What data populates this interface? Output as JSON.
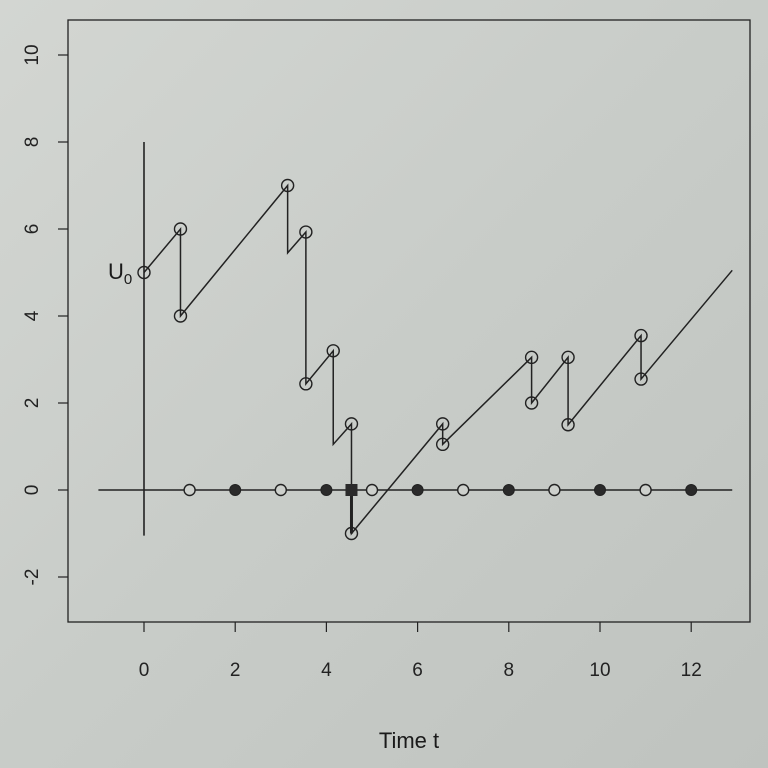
{
  "chart_data": {
    "type": "line",
    "xlabel": "Time t",
    "ylabel": "",
    "xlim": [
      -1.6,
      13.3
    ],
    "ylim": [
      -3.1,
      10.8
    ],
    "xticks": [
      0,
      2,
      4,
      6,
      8,
      10,
      12
    ],
    "yticks": [
      -2,
      0,
      2,
      4,
      6,
      8,
      10
    ],
    "grid": false,
    "annotation": {
      "text": "U",
      "subscript": "0",
      "x": 0,
      "y": 5
    },
    "path": [
      [
        0,
        5
      ],
      [
        0.8,
        6
      ],
      [
        0.8,
        4
      ],
      [
        3.15,
        7.0
      ],
      [
        3.15,
        5.45
      ],
      [
        3.55,
        5.93
      ],
      [
        3.55,
        2.44
      ],
      [
        4.15,
        3.2
      ],
      [
        4.15,
        1.05
      ],
      [
        4.55,
        1.52
      ],
      [
        4.55,
        -1.0
      ],
      [
        6.55,
        1.52
      ],
      [
        6.55,
        1.05
      ],
      [
        8.5,
        3.05
      ],
      [
        8.5,
        2.0
      ],
      [
        9.3,
        3.05
      ],
      [
        9.3,
        1.5
      ],
      [
        10.9,
        3.55
      ],
      [
        10.9,
        2.55
      ],
      [
        12.9,
        5.05
      ]
    ],
    "circled_points": [
      [
        0,
        5
      ],
      [
        0.8,
        6
      ],
      [
        0.8,
        4
      ],
      [
        3.15,
        7.0
      ],
      [
        3.55,
        5.93
      ],
      [
        3.55,
        2.44
      ],
      [
        4.15,
        3.2
      ],
      [
        4.55,
        1.52
      ],
      [
        4.55,
        -1.0
      ],
      [
        6.55,
        1.52
      ],
      [
        6.55,
        1.05
      ],
      [
        8.5,
        3.05
      ],
      [
        8.5,
        2.0
      ],
      [
        9.3,
        3.05
      ],
      [
        9.3,
        1.5
      ],
      [
        10.9,
        3.55
      ],
      [
        10.9,
        2.55
      ]
    ],
    "axis_open_points": [
      1,
      3,
      5,
      7,
      9,
      11
    ],
    "axis_filled_points": [
      2,
      4,
      6,
      8,
      10,
      12
    ],
    "axis_square_point": 4.55,
    "vertical_line": {
      "x": 0,
      "from": -1.05,
      "to": 8
    },
    "horizontal_line": {
      "y": 0,
      "from": -1.0,
      "to": 12.9
    }
  }
}
